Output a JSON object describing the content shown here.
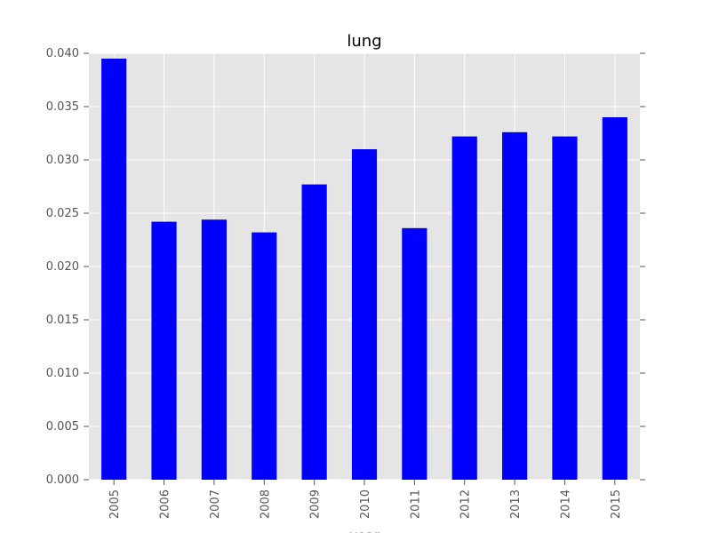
{
  "chart_data": {
    "type": "bar",
    "title": "lung",
    "xlabel": "year",
    "ylabel": "",
    "categories": [
      "2005",
      "2006",
      "2007",
      "2008",
      "2009",
      "2010",
      "2011",
      "2012",
      "2013",
      "2014",
      "2015"
    ],
    "values": [
      0.0395,
      0.0242,
      0.0244,
      0.0232,
      0.0277,
      0.031,
      0.0236,
      0.0322,
      0.0326,
      0.0322,
      0.034
    ],
    "ylim": [
      0,
      0.04
    ],
    "yticks": [
      "0.000",
      "0.005",
      "0.010",
      "0.015",
      "0.020",
      "0.025",
      "0.030",
      "0.035",
      "0.040"
    ],
    "grid": true,
    "legend": "none",
    "colors": {
      "bar": "#0000ff",
      "plot_background": "#e5e5e5",
      "grid": "#ffffff",
      "tick_label": "#555555"
    }
  }
}
